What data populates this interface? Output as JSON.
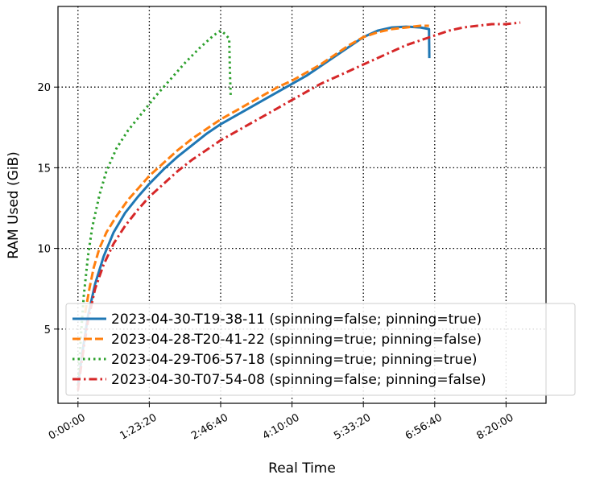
{
  "chart_data": {
    "type": "line",
    "xlabel": "Real Time",
    "ylabel": "RAM Used (GiB)",
    "x_unit": "seconds",
    "xlim": [
      -1400,
      32800
    ],
    "ylim": [
      0.4,
      25.0
    ],
    "xticks": [
      0,
      5000,
      10000,
      15000,
      20000,
      25000,
      30000
    ],
    "xtick_labels": [
      "0:00:00",
      "1:23:20",
      "2:46:40",
      "4:10:00",
      "5:33:20",
      "6:56:40",
      "8:20:00"
    ],
    "yticks": [
      5,
      10,
      15,
      20
    ],
    "ytick_labels": [
      "5",
      "10",
      "15",
      "20"
    ],
    "grid": true,
    "grid_style": "dotted",
    "legend_position": "lower-right",
    "series": [
      {
        "name": "2023-04-30-T19-38-11 (spinning=false; pinning=true)",
        "color": "#1f77b4",
        "style": "solid",
        "x": [
          0,
          300,
          700,
          1200,
          1800,
          2500,
          3300,
          4200,
          5000,
          6000,
          7000,
          8000,
          9000,
          10000,
          11000,
          12000,
          13000,
          14000,
          15000,
          16000,
          17000,
          18000,
          19000,
          20000,
          21000,
          22000,
          23000,
          24000,
          24600,
          24620
        ],
        "y": [
          1.5,
          3.5,
          5.8,
          7.8,
          9.5,
          11.0,
          12.2,
          13.2,
          14.0,
          14.9,
          15.7,
          16.4,
          17.1,
          17.7,
          18.2,
          18.7,
          19.2,
          19.7,
          20.2,
          20.7,
          21.3,
          21.9,
          22.5,
          23.1,
          23.5,
          23.7,
          23.75,
          23.7,
          23.6,
          21.8
        ]
      },
      {
        "name": "2023-04-28-T20-41-22 (spinning=true; pinning=false)",
        "color": "#ff7f0e",
        "style": "dashed",
        "x": [
          500,
          800,
          1100,
          1500,
          2000,
          2700,
          3500,
          4300,
          5000,
          6000,
          7000,
          8000,
          9000,
          10000,
          11000,
          12000,
          13000,
          14000,
          15000,
          16000,
          17000,
          18000,
          19000,
          20000,
          21000,
          22000,
          23000,
          24000,
          24600
        ],
        "y": [
          6.0,
          7.5,
          8.8,
          10.0,
          11.0,
          12.0,
          13.0,
          13.8,
          14.5,
          15.3,
          16.1,
          16.8,
          17.4,
          18.0,
          18.5,
          19.0,
          19.5,
          20.0,
          20.4,
          20.9,
          21.4,
          22.0,
          22.6,
          23.1,
          23.4,
          23.6,
          23.7,
          23.8,
          23.8
        ]
      },
      {
        "name": "2023-04-29-T06-57-18 (spinning=true; pinning=true)",
        "color": "#2ca02c",
        "style": "dotted",
        "x": [
          0,
          200,
          400,
          700,
          1000,
          1500,
          2000,
          2700,
          3500,
          4500,
          5500,
          6500,
          7500,
          8500,
          9500,
          10000,
          10300,
          10600,
          10650,
          10700
        ],
        "y": [
          1.5,
          4.5,
          7.0,
          9.5,
          11.3,
          13.3,
          14.8,
          16.2,
          17.3,
          18.4,
          19.5,
          20.5,
          21.5,
          22.4,
          23.2,
          23.5,
          23.3,
          23.0,
          21.0,
          19.5
        ]
      },
      {
        "name": "2023-04-30-T07-54-08 (spinning=false; pinning=false)",
        "color": "#d62728",
        "style": "dashdot",
        "x": [
          0,
          300,
          700,
          1200,
          1800,
          2500,
          3300,
          4200,
          5000,
          6000,
          7000,
          8000,
          9000,
          10000,
          11000,
          12000,
          13000,
          14000,
          15000,
          16000,
          17000,
          18000,
          19000,
          20000,
          21000,
          22000,
          23000,
          24000,
          25000,
          26000,
          27000,
          28000,
          29000,
          30000,
          31000
        ],
        "y": [
          1.2,
          3.2,
          5.5,
          7.5,
          9.0,
          10.3,
          11.4,
          12.4,
          13.2,
          14.0,
          14.8,
          15.5,
          16.1,
          16.7,
          17.2,
          17.7,
          18.2,
          18.7,
          19.2,
          19.7,
          20.2,
          20.6,
          21.0,
          21.4,
          21.8,
          22.2,
          22.6,
          22.9,
          23.2,
          23.5,
          23.7,
          23.8,
          23.9,
          23.9,
          24.0
        ]
      }
    ]
  }
}
